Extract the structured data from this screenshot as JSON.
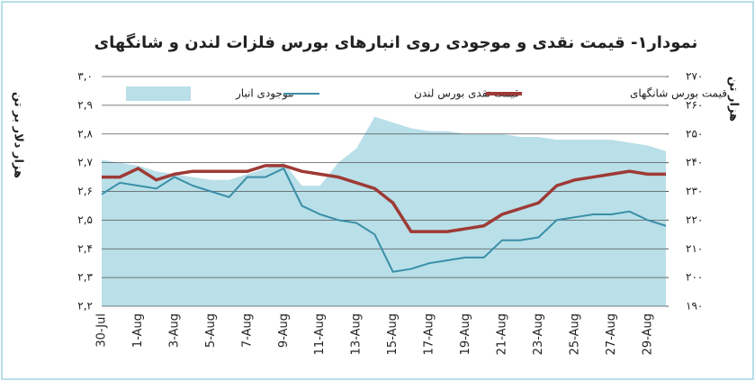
{
  "chart_data": {
    "type": "line",
    "title": "نمودار۱- قیمت نقدی و موجودی روی انبارهای بورس فلزات لندن و شانگهای",
    "y_label": "هزار دلار بر تن",
    "y2_label": "هزار تن",
    "categories": [
      "30-Jul",
      null,
      "1-Aug",
      null,
      "3-Aug",
      null,
      "5-Aug",
      null,
      "7-Aug",
      null,
      "9-Aug",
      null,
      "11-Aug",
      null,
      "13-Aug",
      null,
      "15-Aug",
      null,
      "17-Aug",
      null,
      "19-Aug",
      null,
      "21-Aug",
      null,
      "23-Aug",
      null,
      "25-Aug",
      null,
      "27-Aug",
      null,
      "29-Aug",
      null
    ],
    "series": [
      {
        "name": "موجودی انبار",
        "type": "area",
        "axis": "y2",
        "color": "#b9dfe8",
        "values": [
          241,
          240,
          239,
          237,
          236,
          235,
          234,
          234,
          236,
          238,
          240,
          232,
          232,
          240,
          245,
          256,
          254,
          252,
          251,
          251,
          250,
          250,
          250,
          249,
          249,
          248,
          248,
          248,
          248,
          247,
          246,
          244
        ]
      },
      {
        "name": "قیمت نقدی بورس لندن",
        "type": "line",
        "axis": "y",
        "color": "#3a8fa8",
        "values": [
          2.59,
          2.63,
          2.62,
          2.61,
          2.65,
          2.62,
          2.6,
          2.58,
          2.65,
          2.65,
          2.68,
          2.55,
          2.52,
          2.5,
          2.49,
          2.45,
          2.32,
          2.33,
          2.35,
          2.36,
          2.37,
          2.37,
          2.43,
          2.43,
          2.44,
          2.5,
          2.51,
          2.52,
          2.52,
          2.53,
          2.5,
          2.48
        ]
      },
      {
        "name": "قیمت بورس شانگهای",
        "type": "line",
        "axis": "y",
        "color": "#9e3a35",
        "values": [
          2.65,
          2.65,
          2.68,
          2.64,
          2.66,
          2.67,
          2.67,
          2.67,
          2.67,
          2.69,
          2.69,
          2.67,
          2.66,
          2.65,
          2.63,
          2.61,
          2.56,
          2.46,
          2.46,
          2.46,
          2.47,
          2.48,
          2.52,
          2.54,
          2.56,
          2.62,
          2.64,
          2.65,
          2.66,
          2.67,
          2.66,
          2.66
        ]
      }
    ],
    "ylim": [
      2.2,
      3.0
    ],
    "yticks": [
      {
        "value": 2.2,
        "label": "۲,۲"
      },
      {
        "value": 2.3,
        "label": "۲,۳"
      },
      {
        "value": 2.4,
        "label": "۲,۴"
      },
      {
        "value": 2.5,
        "label": "۲,۵"
      },
      {
        "value": 2.6,
        "label": "۲,۶"
      },
      {
        "value": 2.7,
        "label": "۲,۷"
      },
      {
        "value": 2.8,
        "label": "۲,۸"
      },
      {
        "value": 2.9,
        "label": "۲,۹"
      },
      {
        "value": 3.0,
        "label": "۳,۰"
      }
    ],
    "y2lim": [
      190,
      270
    ],
    "y2ticks": [
      {
        "value": 190,
        "label": "۱۹۰"
      },
      {
        "value": 200,
        "label": "۲۰۰"
      },
      {
        "value": 210,
        "label": "۲۱۰"
      },
      {
        "value": 220,
        "label": "۲۲۰"
      },
      {
        "value": 230,
        "label": "۲۳۰"
      },
      {
        "value": 240,
        "label": "۲۴۰"
      },
      {
        "value": 250,
        "label": "۲۵۰"
      },
      {
        "value": 260,
        "label": "۲۶۰"
      },
      {
        "value": 270,
        "label": "۲۷۰"
      }
    ],
    "grid": true,
    "legend": "top"
  }
}
